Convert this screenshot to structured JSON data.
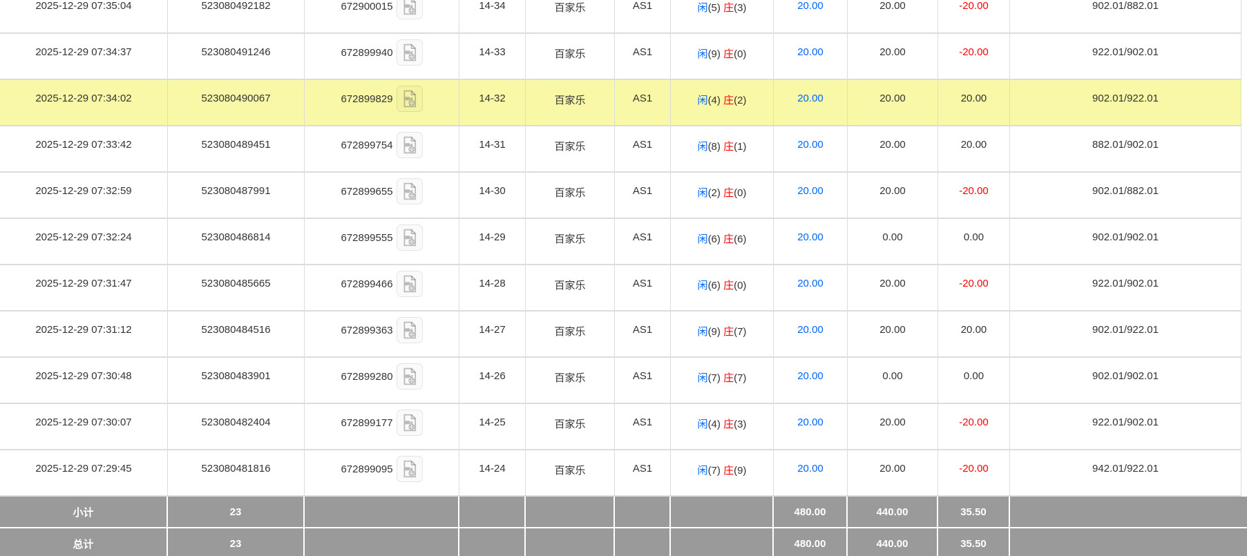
{
  "colors": {
    "highlight_row": "#f8f8a6",
    "summary_row_bg": "#9a9a9a",
    "summary_row_text": "#ffffff",
    "link_blue": "#0066ff",
    "loss_red": "#ff0000",
    "grid_border": "#dcdcdc",
    "body_text": "#333333"
  },
  "icons": {
    "video_replay": "video-file-icon"
  },
  "result_labels": {
    "player": "闲",
    "banker": "庄"
  },
  "rows": [
    {
      "time": "2025-12-29 07:35:04",
      "bet_id": "523080492182",
      "game_id": "672900015",
      "round": "14-34",
      "game": "百家乐",
      "table": "AS1",
      "player_points": "5",
      "banker_points": "3",
      "bet": "20.00",
      "valid": "20.00",
      "win": "-20.00",
      "balance": "902.01/882.01",
      "highlighted": false
    },
    {
      "time": "2025-12-29 07:34:37",
      "bet_id": "523080491246",
      "game_id": "672899940",
      "round": "14-33",
      "game": "百家乐",
      "table": "AS1",
      "player_points": "9",
      "banker_points": "0",
      "bet": "20.00",
      "valid": "20.00",
      "win": "-20.00",
      "balance": "922.01/902.01",
      "highlighted": false
    },
    {
      "time": "2025-12-29 07:34:02",
      "bet_id": "523080490067",
      "game_id": "672899829",
      "round": "14-32",
      "game": "百家乐",
      "table": "AS1",
      "player_points": "4",
      "banker_points": "2",
      "bet": "20.00",
      "valid": "20.00",
      "win": "20.00",
      "balance": "902.01/922.01",
      "highlighted": true
    },
    {
      "time": "2025-12-29 07:33:42",
      "bet_id": "523080489451",
      "game_id": "672899754",
      "round": "14-31",
      "game": "百家乐",
      "table": "AS1",
      "player_points": "8",
      "banker_points": "1",
      "bet": "20.00",
      "valid": "20.00",
      "win": "20.00",
      "balance": "882.01/902.01",
      "highlighted": false
    },
    {
      "time": "2025-12-29 07:32:59",
      "bet_id": "523080487991",
      "game_id": "672899655",
      "round": "14-30",
      "game": "百家乐",
      "table": "AS1",
      "player_points": "2",
      "banker_points": "0",
      "bet": "20.00",
      "valid": "20.00",
      "win": "-20.00",
      "balance": "902.01/882.01",
      "highlighted": false
    },
    {
      "time": "2025-12-29 07:32:24",
      "bet_id": "523080486814",
      "game_id": "672899555",
      "round": "14-29",
      "game": "百家乐",
      "table": "AS1",
      "player_points": "6",
      "banker_points": "6",
      "bet": "20.00",
      "valid": "0.00",
      "win": "0.00",
      "balance": "902.01/902.01",
      "highlighted": false
    },
    {
      "time": "2025-12-29 07:31:47",
      "bet_id": "523080485665",
      "game_id": "672899466",
      "round": "14-28",
      "game": "百家乐",
      "table": "AS1",
      "player_points": "6",
      "banker_points": "0",
      "bet": "20.00",
      "valid": "20.00",
      "win": "-20.00",
      "balance": "922.01/902.01",
      "highlighted": false
    },
    {
      "time": "2025-12-29 07:31:12",
      "bet_id": "523080484516",
      "game_id": "672899363",
      "round": "14-27",
      "game": "百家乐",
      "table": "AS1",
      "player_points": "9",
      "banker_points": "7",
      "bet": "20.00",
      "valid": "20.00",
      "win": "20.00",
      "balance": "902.01/922.01",
      "highlighted": false
    },
    {
      "time": "2025-12-29 07:30:48",
      "bet_id": "523080483901",
      "game_id": "672899280",
      "round": "14-26",
      "game": "百家乐",
      "table": "AS1",
      "player_points": "7",
      "banker_points": "7",
      "bet": "20.00",
      "valid": "0.00",
      "win": "0.00",
      "balance": "902.01/902.01",
      "highlighted": false
    },
    {
      "time": "2025-12-29 07:30:07",
      "bet_id": "523080482404",
      "game_id": "672899177",
      "round": "14-25",
      "game": "百家乐",
      "table": "AS1",
      "player_points": "4",
      "banker_points": "3",
      "bet": "20.00",
      "valid": "20.00",
      "win": "-20.00",
      "balance": "922.01/902.01",
      "highlighted": false
    },
    {
      "time": "2025-12-29 07:29:45",
      "bet_id": "523080481816",
      "game_id": "672899095",
      "round": "14-24",
      "game": "百家乐",
      "table": "AS1",
      "player_points": "7",
      "banker_points": "9",
      "bet": "20.00",
      "valid": "20.00",
      "win": "-20.00",
      "balance": "942.01/922.01",
      "highlighted": false
    }
  ],
  "summary_rows": [
    {
      "label": "小计",
      "count": "23",
      "bet_total": "480.00",
      "valid_total": "440.00",
      "win_total": "35.50"
    },
    {
      "label": "总计",
      "count": "23",
      "bet_total": "480.00",
      "valid_total": "440.00",
      "win_total": "35.50"
    }
  ]
}
